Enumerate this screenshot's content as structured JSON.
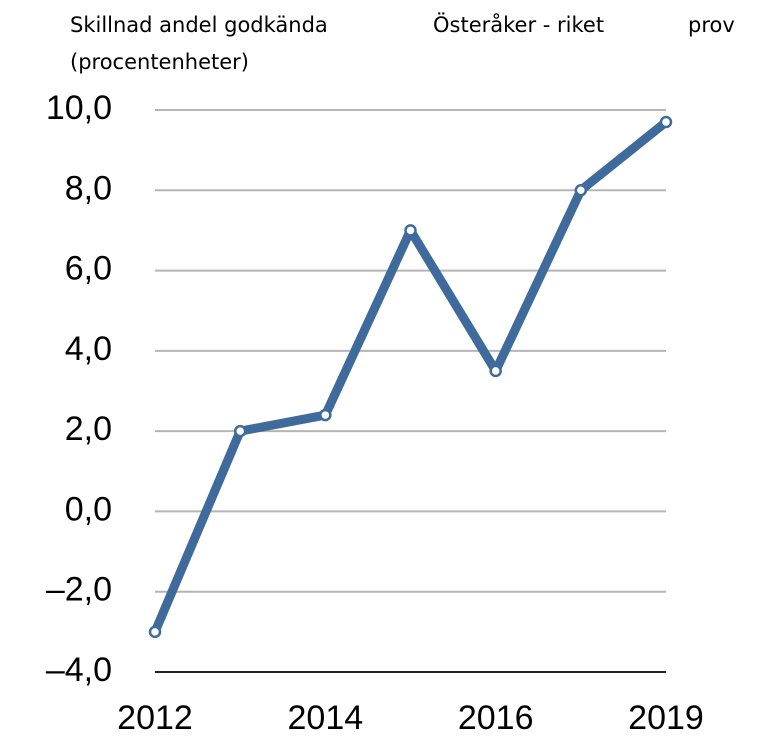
{
  "chart_data": {
    "type": "line",
    "title": "Skillnad andel godkända (procentenheter)",
    "subtitle": "Österåker - riket",
    "annotations": [
      "prov"
    ],
    "categories": [
      "2012",
      null,
      "2014",
      null,
      "2016",
      null,
      "2019"
    ],
    "series": [
      {
        "name": null,
        "color": "#3f6a9c",
        "values": [
          -3.0,
          2.0,
          2.4,
          7.0,
          3.5,
          8.0,
          9.7
        ]
      }
    ],
    "ylim": [
      -4,
      10
    ],
    "yticks": [
      {
        "value": -4,
        "label": "–4,0"
      },
      {
        "value": -2,
        "label": "–2,0"
      },
      {
        "value": 0,
        "label": "0,0"
      },
      {
        "value": 2,
        "label": "2,0"
      },
      {
        "value": 4,
        "label": "4,0"
      },
      {
        "value": 6,
        "label": "6,0"
      },
      {
        "value": 8,
        "label": "8,0"
      },
      {
        "value": 10,
        "label": "10,0"
      }
    ],
    "grid": true
  }
}
